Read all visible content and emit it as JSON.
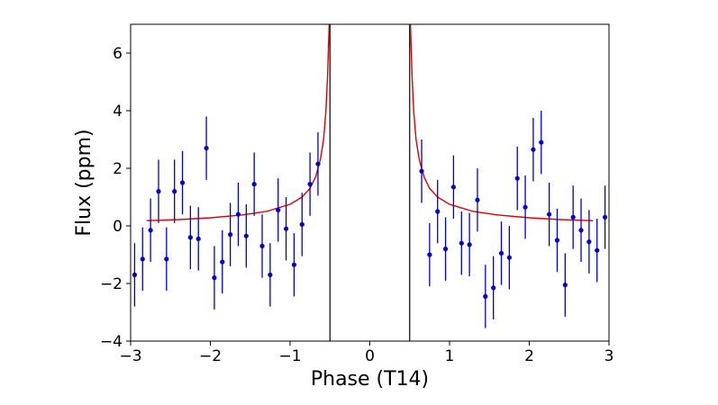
{
  "chart_data": {
    "type": "scatter",
    "xlabel": "Phase (T14)",
    "ylabel": "Flux (ppm)",
    "xlim": [
      -3,
      3
    ],
    "ylim": [
      -4,
      7
    ],
    "xticks": [
      -3,
      -2,
      -1,
      0,
      1,
      2,
      3
    ],
    "yticks": [
      -4,
      -2,
      0,
      2,
      4,
      6
    ],
    "xtick_labels": [
      "−3",
      "−2",
      "−1",
      "0",
      "1",
      "2",
      "3"
    ],
    "ytick_labels": [
      "−4",
      "−2",
      "0",
      "2",
      "4",
      "6"
    ],
    "grid": false,
    "legend": "none",
    "vlines": [
      -0.5,
      0.5
    ],
    "colors": {
      "points": "#0000cc",
      "model": "#dd0000",
      "vlines": "#000000"
    },
    "series": [
      {
        "kind": "points-with-errorbars",
        "points": [
          {
            "x": -2.95,
            "y": -1.7,
            "err": 1.1
          },
          {
            "x": -2.85,
            "y": -1.15,
            "err": 1.1
          },
          {
            "x": -2.75,
            "y": -0.15,
            "err": 1.1
          },
          {
            "x": -2.65,
            "y": 1.2,
            "err": 1.1
          },
          {
            "x": -2.55,
            "y": -1.15,
            "err": 1.1
          },
          {
            "x": -2.45,
            "y": 1.2,
            "err": 1.1
          },
          {
            "x": -2.35,
            "y": 1.5,
            "err": 1.1
          },
          {
            "x": -2.25,
            "y": -0.4,
            "err": 1.1
          },
          {
            "x": -2.15,
            "y": -0.45,
            "err": 1.1
          },
          {
            "x": -2.05,
            "y": 2.7,
            "err": 1.1
          },
          {
            "x": -1.95,
            "y": -1.8,
            "err": 1.1
          },
          {
            "x": -1.85,
            "y": -1.25,
            "err": 1.1
          },
          {
            "x": -1.75,
            "y": -0.3,
            "err": 1.1
          },
          {
            "x": -1.65,
            "y": 0.4,
            "err": 1.1
          },
          {
            "x": -1.55,
            "y": -0.35,
            "err": 1.1
          },
          {
            "x": -1.45,
            "y": 1.45,
            "err": 1.1
          },
          {
            "x": -1.35,
            "y": -0.7,
            "err": 1.1
          },
          {
            "x": -1.25,
            "y": -1.7,
            "err": 1.1
          },
          {
            "x": -1.15,
            "y": 0.55,
            "err": 1.1
          },
          {
            "x": -1.05,
            "y": -0.1,
            "err": 1.1
          },
          {
            "x": -0.95,
            "y": -1.35,
            "err": 1.1
          },
          {
            "x": -0.85,
            "y": 0.05,
            "err": 1.1
          },
          {
            "x": -0.75,
            "y": 1.45,
            "err": 1.1
          },
          {
            "x": -0.65,
            "y": 2.15,
            "err": 1.1
          },
          {
            "x": 0.65,
            "y": 1.9,
            "err": 1.1
          },
          {
            "x": 0.75,
            "y": -1.0,
            "err": 1.1
          },
          {
            "x": 0.85,
            "y": 0.5,
            "err": 1.1
          },
          {
            "x": 0.95,
            "y": -0.8,
            "err": 1.1
          },
          {
            "x": 1.05,
            "y": 1.35,
            "err": 1.1
          },
          {
            "x": 1.15,
            "y": -0.6,
            "err": 1.1
          },
          {
            "x": 1.25,
            "y": -0.65,
            "err": 1.1
          },
          {
            "x": 1.35,
            "y": 0.9,
            "err": 1.1
          },
          {
            "x": 1.45,
            "y": -2.45,
            "err": 1.1
          },
          {
            "x": 1.55,
            "y": -2.15,
            "err": 1.1
          },
          {
            "x": 1.65,
            "y": -0.95,
            "err": 1.1
          },
          {
            "x": 1.75,
            "y": -1.1,
            "err": 1.1
          },
          {
            "x": 1.85,
            "y": 1.65,
            "err": 1.1
          },
          {
            "x": 1.95,
            "y": 0.65,
            "err": 1.1
          },
          {
            "x": 2.05,
            "y": 2.65,
            "err": 1.1
          },
          {
            "x": 2.15,
            "y": 2.9,
            "err": 1.1
          },
          {
            "x": 2.25,
            "y": 0.4,
            "err": 1.1
          },
          {
            "x": 2.35,
            "y": -0.5,
            "err": 1.1
          },
          {
            "x": 2.45,
            "y": -2.05,
            "err": 1.1
          },
          {
            "x": 2.55,
            "y": 0.3,
            "err": 1.1
          },
          {
            "x": 2.65,
            "y": -0.15,
            "err": 1.1
          },
          {
            "x": 2.75,
            "y": -0.55,
            "err": 1.1
          },
          {
            "x": 2.85,
            "y": -0.85,
            "err": 1.1
          },
          {
            "x": 2.95,
            "y": 0.3,
            "err": 1.1
          }
        ]
      },
      {
        "kind": "model-curve",
        "segments": [
          {
            "x": [
              -2.8,
              -2.4,
              -2.0,
              -1.6,
              -1.3,
              -1.0,
              -0.85,
              -0.75,
              -0.68,
              -0.62,
              -0.58,
              -0.55,
              -0.53,
              -0.51
            ],
            "y": [
              0.18,
              0.22,
              0.28,
              0.38,
              0.5,
              0.75,
              1.0,
              1.3,
              1.7,
              2.3,
              3.0,
              4.0,
              5.2,
              7.0
            ]
          },
          {
            "x": [
              0.51,
              0.53,
              0.55,
              0.58,
              0.62,
              0.68,
              0.75,
              0.85,
              1.0,
              1.3,
              1.6,
              2.0,
              2.4,
              2.8
            ],
            "y": [
              7.0,
              5.2,
              4.0,
              3.0,
              2.3,
              1.7,
              1.3,
              1.0,
              0.75,
              0.5,
              0.38,
              0.28,
              0.22,
              0.18
            ]
          }
        ]
      }
    ]
  }
}
